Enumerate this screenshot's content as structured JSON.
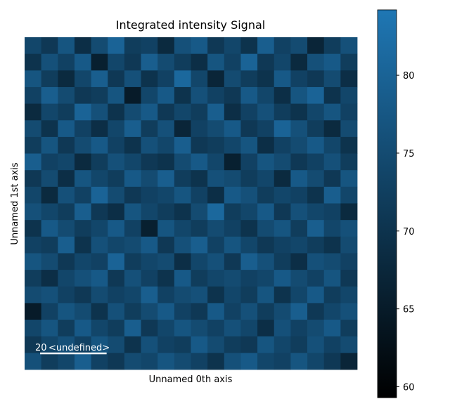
{
  "chart_data": {
    "type": "heatmap",
    "title": "Integrated intensity Signal",
    "x_label": "Unnamed 0th axis",
    "y_label": "Unnamed 1st axis",
    "colormap": [
      "#000000",
      "#1f77b4"
    ],
    "clim": [
      59.3,
      84.2
    ],
    "cticks": [
      60,
      65,
      70,
      75,
      80
    ],
    "scalebar": {
      "value": 20,
      "units": "<undefined>"
    },
    "values": [
      [
        74,
        71,
        77,
        69,
        75,
        80,
        72,
        73,
        68,
        76,
        78,
        71,
        74,
        70,
        79,
        73,
        75,
        67,
        72,
        76
      ],
      [
        70,
        76,
        73,
        78,
        66,
        74,
        71,
        79,
        75,
        72,
        69,
        77,
        73,
        80,
        71,
        74,
        68,
        76,
        78,
        72
      ],
      [
        77,
        72,
        68,
        74,
        79,
        71,
        76,
        70,
        73,
        81,
        74,
        67,
        75,
        72,
        70,
        78,
        73,
        71,
        75,
        69
      ],
      [
        73,
        79,
        75,
        71,
        72,
        77,
        65,
        74,
        78,
        70,
        76,
        73,
        71,
        78,
        74,
        69,
        77,
        80,
        70,
        74
      ],
      [
        68,
        74,
        72,
        80,
        76,
        70,
        75,
        78,
        71,
        74,
        72,
        79,
        69,
        73,
        76,
        72,
        70,
        74,
        77,
        73
      ],
      [
        75,
        70,
        78,
        73,
        69,
        74,
        79,
        72,
        76,
        67,
        73,
        75,
        78,
        71,
        73,
        80,
        76,
        72,
        68,
        75
      ],
      [
        72,
        77,
        71,
        75,
        78,
        73,
        70,
        76,
        74,
        79,
        71,
        72,
        74,
        77,
        69,
        73,
        75,
        78,
        74,
        70
      ],
      [
        79,
        73,
        74,
        68,
        72,
        76,
        74,
        71,
        70,
        75,
        78,
        74,
        66,
        73,
        77,
        75,
        71,
        73,
        76,
        72
      ],
      [
        71,
        75,
        69,
        77,
        74,
        72,
        78,
        75,
        79,
        72,
        70,
        76,
        75,
        72,
        74,
        68,
        78,
        75,
        71,
        77
      ],
      [
        74,
        68,
        76,
        73,
        80,
        75,
        71,
        73,
        74,
        77,
        73,
        69,
        78,
        76,
        72,
        74,
        73,
        70,
        79,
        74
      ],
      [
        76,
        74,
        72,
        79,
        71,
        69,
        77,
        74,
        72,
        70,
        75,
        81,
        72,
        74,
        78,
        71,
        76,
        74,
        73,
        68
      ],
      [
        70,
        78,
        75,
        72,
        74,
        78,
        73,
        66,
        77,
        74,
        72,
        75,
        73,
        70,
        75,
        77,
        72,
        79,
        74,
        76
      ],
      [
        73,
        72,
        79,
        70,
        76,
        74,
        75,
        78,
        71,
        76,
        79,
        73,
        77,
        74,
        71,
        73,
        74,
        72,
        70,
        75
      ],
      [
        77,
        75,
        71,
        74,
        73,
        80,
        72,
        74,
        75,
        69,
        74,
        76,
        71,
        79,
        76,
        72,
        69,
        76,
        75,
        73
      ],
      [
        72,
        69,
        74,
        76,
        78,
        71,
        76,
        73,
        70,
        78,
        72,
        74,
        75,
        73,
        74,
        78,
        75,
        73,
        77,
        71
      ],
      [
        75,
        76,
        73,
        71,
        75,
        73,
        74,
        79,
        73,
        75,
        76,
        70,
        74,
        72,
        77,
        70,
        74,
        78,
        72,
        74
      ],
      [
        65,
        73,
        77,
        75,
        70,
        76,
        72,
        75,
        78,
        73,
        71,
        78,
        73,
        76,
        72,
        75,
        79,
        71,
        74,
        76
      ],
      [
        74,
        77,
        72,
        78,
        74,
        72,
        79,
        71,
        74,
        77,
        75,
        73,
        76,
        74,
        69,
        76,
        73,
        75,
        78,
        72
      ],
      [
        71,
        74,
        76,
        73,
        77,
        75,
        70,
        76,
        73,
        72,
        78,
        75,
        72,
        71,
        77,
        74,
        72,
        76,
        73,
        75
      ],
      [
        76,
        72,
        74,
        79,
        73,
        71,
        75,
        74,
        77,
        75,
        73,
        70,
        76,
        78,
        74,
        73,
        77,
        74,
        71,
        67
      ]
    ]
  }
}
